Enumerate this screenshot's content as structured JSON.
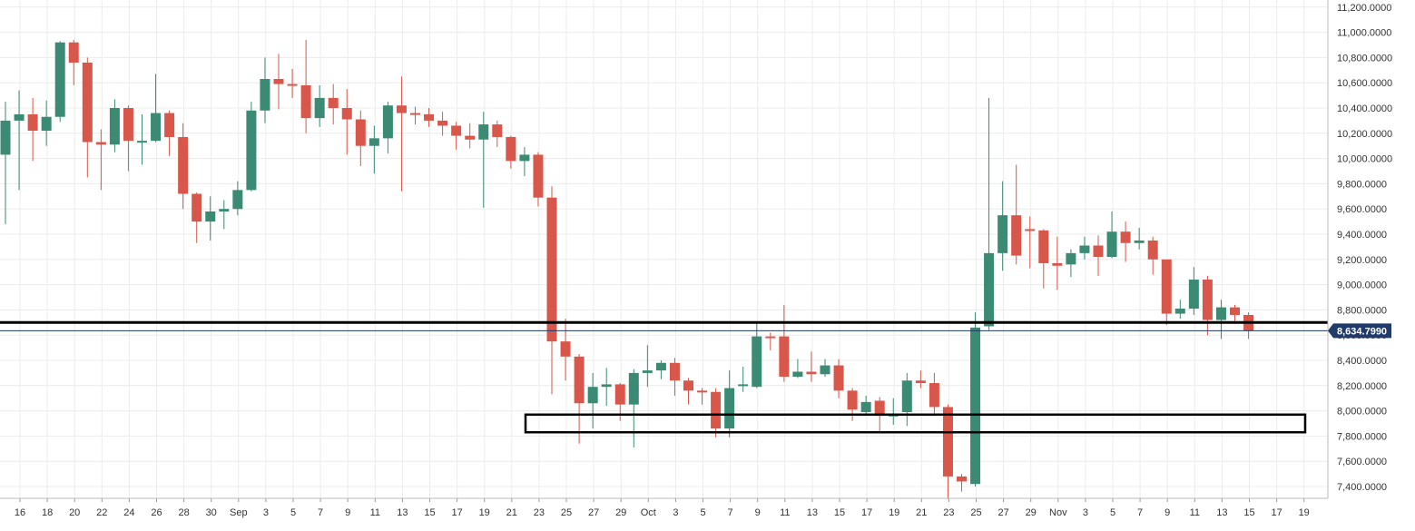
{
  "chart_data": {
    "type": "candlestick",
    "title": "",
    "xlabel": "",
    "ylabel": "",
    "ylim": [
      7300,
      11300
    ],
    "grid": true,
    "y_ticks": [
      "11,200.0000",
      "11,000.0000",
      "10,800.0000",
      "10,600.0000",
      "10,400.0000",
      "10,200.0000",
      "10,000.0000",
      "9,800.0000",
      "9,600.0000",
      "9,400.0000",
      "9,200.0000",
      "9,000.0000",
      "8,800.0000",
      "8,600.0000",
      "8,400.0000",
      "8,200.0000",
      "8,000.0000",
      "7,800.0000",
      "7,600.0000",
      "7,400.0000"
    ],
    "x_ticks": [
      "16",
      "18",
      "20",
      "22",
      "24",
      "26",
      "28",
      "30",
      "Sep",
      "3",
      "5",
      "7",
      "9",
      "11",
      "13",
      "15",
      "17",
      "19",
      "21",
      "23",
      "25",
      "27",
      "29",
      "Oct",
      "3",
      "5",
      "7",
      "9",
      "11",
      "13",
      "15",
      "17",
      "19",
      "21",
      "23",
      "25",
      "27",
      "29",
      "Nov",
      "3",
      "5",
      "7",
      "9",
      "11",
      "13",
      "15",
      "17",
      "19"
    ],
    "last_price": 8634.799,
    "last_price_label": "8,634.7990",
    "up_color": "#3a8a74",
    "down_color": "#d9574a",
    "support_line": 8700,
    "support_zone": [
      7830,
      7970
    ],
    "candles": [
      {
        "date": "Aug 15",
        "o": 10030,
        "h": 10450,
        "l": 9480,
        "c": 10300
      },
      {
        "date": "Aug 16",
        "o": 10300,
        "h": 10540,
        "l": 9750,
        "c": 10350
      },
      {
        "date": "Aug 17",
        "o": 10350,
        "h": 10480,
        "l": 9980,
        "c": 10220
      },
      {
        "date": "Aug 18",
        "o": 10220,
        "h": 10460,
        "l": 10100,
        "c": 10330
      },
      {
        "date": "Aug 19",
        "o": 10330,
        "h": 10930,
        "l": 10290,
        "c": 10920
      },
      {
        "date": "Aug 20",
        "o": 10920,
        "h": 10940,
        "l": 10580,
        "c": 10760
      },
      {
        "date": "Aug 21",
        "o": 10760,
        "h": 10800,
        "l": 9850,
        "c": 10130
      },
      {
        "date": "Aug 22",
        "o": 10130,
        "h": 10230,
        "l": 9750,
        "c": 10110
      },
      {
        "date": "Aug 23",
        "o": 10110,
        "h": 10470,
        "l": 10050,
        "c": 10400
      },
      {
        "date": "Aug 24",
        "o": 10400,
        "h": 10420,
        "l": 9900,
        "c": 10140
      },
      {
        "date": "Aug 25",
        "o": 10140,
        "h": 10350,
        "l": 9950,
        "c": 10140
      },
      {
        "date": "Aug 26",
        "o": 10140,
        "h": 10670,
        "l": 10130,
        "c": 10360
      },
      {
        "date": "Aug 27",
        "o": 10360,
        "h": 10380,
        "l": 10020,
        "c": 10170
      },
      {
        "date": "Aug 28",
        "o": 10170,
        "h": 10280,
        "l": 9600,
        "c": 9720
      },
      {
        "date": "Aug 29",
        "o": 9720,
        "h": 9730,
        "l": 9330,
        "c": 9500
      },
      {
        "date": "Aug 30",
        "o": 9500,
        "h": 9700,
        "l": 9350,
        "c": 9580
      },
      {
        "date": "Aug 31",
        "o": 9580,
        "h": 9670,
        "l": 9440,
        "c": 9600
      },
      {
        "date": "Sep 1",
        "o": 9600,
        "h": 9820,
        "l": 9550,
        "c": 9750
      },
      {
        "date": "Sep 2",
        "o": 9750,
        "h": 10450,
        "l": 9740,
        "c": 10380
      },
      {
        "date": "Sep 3",
        "o": 10380,
        "h": 10800,
        "l": 10280,
        "c": 10630
      },
      {
        "date": "Sep 4",
        "o": 10630,
        "h": 10830,
        "l": 10390,
        "c": 10590
      },
      {
        "date": "Sep 5",
        "o": 10590,
        "h": 10710,
        "l": 10480,
        "c": 10580
      },
      {
        "date": "Sep 6",
        "o": 10580,
        "h": 10940,
        "l": 10200,
        "c": 10320
      },
      {
        "date": "Sep 7",
        "o": 10320,
        "h": 10580,
        "l": 10250,
        "c": 10480
      },
      {
        "date": "Sep 8",
        "o": 10480,
        "h": 10590,
        "l": 10270,
        "c": 10400
      },
      {
        "date": "Sep 9",
        "o": 10400,
        "h": 10550,
        "l": 10030,
        "c": 10310
      },
      {
        "date": "Sep 10",
        "o": 10310,
        "h": 10380,
        "l": 9940,
        "c": 10100
      },
      {
        "date": "Sep 11",
        "o": 10100,
        "h": 10260,
        "l": 9880,
        "c": 10160
      },
      {
        "date": "Sep 12",
        "o": 10160,
        "h": 10450,
        "l": 10040,
        "c": 10420
      },
      {
        "date": "Sep 13",
        "o": 10420,
        "h": 10650,
        "l": 9740,
        "c": 10360
      },
      {
        "date": "Sep 14",
        "o": 10360,
        "h": 10410,
        "l": 10270,
        "c": 10350
      },
      {
        "date": "Sep 15",
        "o": 10350,
        "h": 10400,
        "l": 10250,
        "c": 10300
      },
      {
        "date": "Sep 16",
        "o": 10300,
        "h": 10370,
        "l": 10180,
        "c": 10260
      },
      {
        "date": "Sep 17",
        "o": 10260,
        "h": 10290,
        "l": 10070,
        "c": 10180
      },
      {
        "date": "Sep 18",
        "o": 10180,
        "h": 10280,
        "l": 10080,
        "c": 10150
      },
      {
        "date": "Sep 19",
        "o": 10150,
        "h": 10370,
        "l": 9610,
        "c": 10270
      },
      {
        "date": "Sep 20",
        "o": 10270,
        "h": 10300,
        "l": 10090,
        "c": 10170
      },
      {
        "date": "Sep 21",
        "o": 10170,
        "h": 10180,
        "l": 9920,
        "c": 9980
      },
      {
        "date": "Sep 22",
        "o": 9980,
        "h": 10090,
        "l": 9860,
        "c": 10030
      },
      {
        "date": "Sep 23",
        "o": 10030,
        "h": 10050,
        "l": 9620,
        "c": 9690
      },
      {
        "date": "Sep 24",
        "o": 9690,
        "h": 9780,
        "l": 8130,
        "c": 8550
      },
      {
        "date": "Sep 25",
        "o": 8550,
        "h": 8730,
        "l": 8240,
        "c": 8430
      },
      {
        "date": "Sep 26",
        "o": 8430,
        "h": 8450,
        "l": 7740,
        "c": 8060
      },
      {
        "date": "Sep 27",
        "o": 8060,
        "h": 8300,
        "l": 7860,
        "c": 8190
      },
      {
        "date": "Sep 28",
        "o": 8190,
        "h": 8340,
        "l": 8040,
        "c": 8210
      },
      {
        "date": "Sep 29",
        "o": 8210,
        "h": 8220,
        "l": 7920,
        "c": 8050
      },
      {
        "date": "Sep 30",
        "o": 8050,
        "h": 8330,
        "l": 7710,
        "c": 8300
      },
      {
        "date": "Oct 1",
        "o": 8300,
        "h": 8520,
        "l": 8190,
        "c": 8320
      },
      {
        "date": "Oct 2",
        "o": 8320,
        "h": 8400,
        "l": 8250,
        "c": 8380
      },
      {
        "date": "Oct 3",
        "o": 8380,
        "h": 8420,
        "l": 8120,
        "c": 8240
      },
      {
        "date": "Oct 4",
        "o": 8240,
        "h": 8260,
        "l": 8050,
        "c": 8160
      },
      {
        "date": "Oct 5",
        "o": 8160,
        "h": 8180,
        "l": 8050,
        "c": 8150
      },
      {
        "date": "Oct 6",
        "o": 8150,
        "h": 8180,
        "l": 7790,
        "c": 7860
      },
      {
        "date": "Oct 7",
        "o": 7860,
        "h": 8320,
        "l": 7790,
        "c": 8180
      },
      {
        "date": "Oct 8",
        "o": 8200,
        "h": 8350,
        "l": 8150,
        "c": 8210
      },
      {
        "date": "Oct 9",
        "o": 8190,
        "h": 8690,
        "l": 8180,
        "c": 8590
      },
      {
        "date": "Oct 10",
        "o": 8590,
        "h": 8620,
        "l": 8480,
        "c": 8580
      },
      {
        "date": "Oct 11",
        "o": 8590,
        "h": 8840,
        "l": 8230,
        "c": 8270
      },
      {
        "date": "Oct 12",
        "o": 8270,
        "h": 8410,
        "l": 8260,
        "c": 8310
      },
      {
        "date": "Oct 13",
        "o": 8310,
        "h": 8470,
        "l": 8230,
        "c": 8290
      },
      {
        "date": "Oct 14",
        "o": 8290,
        "h": 8410,
        "l": 8270,
        "c": 8360
      },
      {
        "date": "Oct 15",
        "o": 8360,
        "h": 8410,
        "l": 8100,
        "c": 8160
      },
      {
        "date": "Oct 16",
        "o": 8160,
        "h": 8180,
        "l": 7920,
        "c": 8010
      },
      {
        "date": "Oct 17",
        "o": 7990,
        "h": 8120,
        "l": 7960,
        "c": 8070
      },
      {
        "date": "Oct 18",
        "o": 8080,
        "h": 8110,
        "l": 7830,
        "c": 7960
      },
      {
        "date": "Oct 19",
        "o": 7960,
        "h": 8100,
        "l": 7890,
        "c": 7970
      },
      {
        "date": "Oct 20",
        "o": 7990,
        "h": 8300,
        "l": 7880,
        "c": 8240
      },
      {
        "date": "Oct 21",
        "o": 8240,
        "h": 8320,
        "l": 8180,
        "c": 8220
      },
      {
        "date": "Oct 22",
        "o": 8220,
        "h": 8300,
        "l": 7980,
        "c": 8030
      },
      {
        "date": "Oct 23",
        "o": 8030,
        "h": 8050,
        "l": 7300,
        "c": 7480
      },
      {
        "date": "Oct 24",
        "o": 7480,
        "h": 7500,
        "l": 7360,
        "c": 7440
      },
      {
        "date": "Oct 25",
        "o": 7420,
        "h": 8780,
        "l": 7400,
        "c": 8660
      },
      {
        "date": "Oct 26",
        "o": 8670,
        "h": 10480,
        "l": 8640,
        "c": 9250
      },
      {
        "date": "Oct 27",
        "o": 9250,
        "h": 9820,
        "l": 9110,
        "c": 9550
      },
      {
        "date": "Oct 28",
        "o": 9550,
        "h": 9950,
        "l": 9160,
        "c": 9230
      },
      {
        "date": "Oct 29",
        "o": 9440,
        "h": 9540,
        "l": 9130,
        "c": 9430
      },
      {
        "date": "Oct 30",
        "o": 9430,
        "h": 9440,
        "l": 8970,
        "c": 9170
      },
      {
        "date": "Oct 31",
        "o": 9170,
        "h": 9380,
        "l": 8960,
        "c": 9150
      },
      {
        "date": "Nov 1",
        "o": 9160,
        "h": 9280,
        "l": 9060,
        "c": 9250
      },
      {
        "date": "Nov 2",
        "o": 9250,
        "h": 9380,
        "l": 9200,
        "c": 9310
      },
      {
        "date": "Nov 3",
        "o": 9310,
        "h": 9390,
        "l": 9070,
        "c": 9220
      },
      {
        "date": "Nov 4",
        "o": 9220,
        "h": 9580,
        "l": 9210,
        "c": 9420
      },
      {
        "date": "Nov 5",
        "o": 9420,
        "h": 9500,
        "l": 9180,
        "c": 9330
      },
      {
        "date": "Nov 6",
        "o": 9330,
        "h": 9450,
        "l": 9280,
        "c": 9350
      },
      {
        "date": "Nov 7",
        "o": 9350,
        "h": 9380,
        "l": 9080,
        "c": 9200
      },
      {
        "date": "Nov 8",
        "o": 9200,
        "h": 9200,
        "l": 8680,
        "c": 8770
      },
      {
        "date": "Nov 9",
        "o": 8770,
        "h": 8880,
        "l": 8730,
        "c": 8810
      },
      {
        "date": "Nov 10",
        "o": 8810,
        "h": 9140,
        "l": 8760,
        "c": 9040
      },
      {
        "date": "Nov 11",
        "o": 9040,
        "h": 9070,
        "l": 8600,
        "c": 8720
      },
      {
        "date": "Nov 12",
        "o": 8720,
        "h": 8880,
        "l": 8570,
        "c": 8820
      },
      {
        "date": "Nov 13",
        "o": 8820,
        "h": 8840,
        "l": 8690,
        "c": 8760
      },
      {
        "date": "Nov 14",
        "o": 8760,
        "h": 8780,
        "l": 8570,
        "c": 8634.8
      }
    ]
  }
}
